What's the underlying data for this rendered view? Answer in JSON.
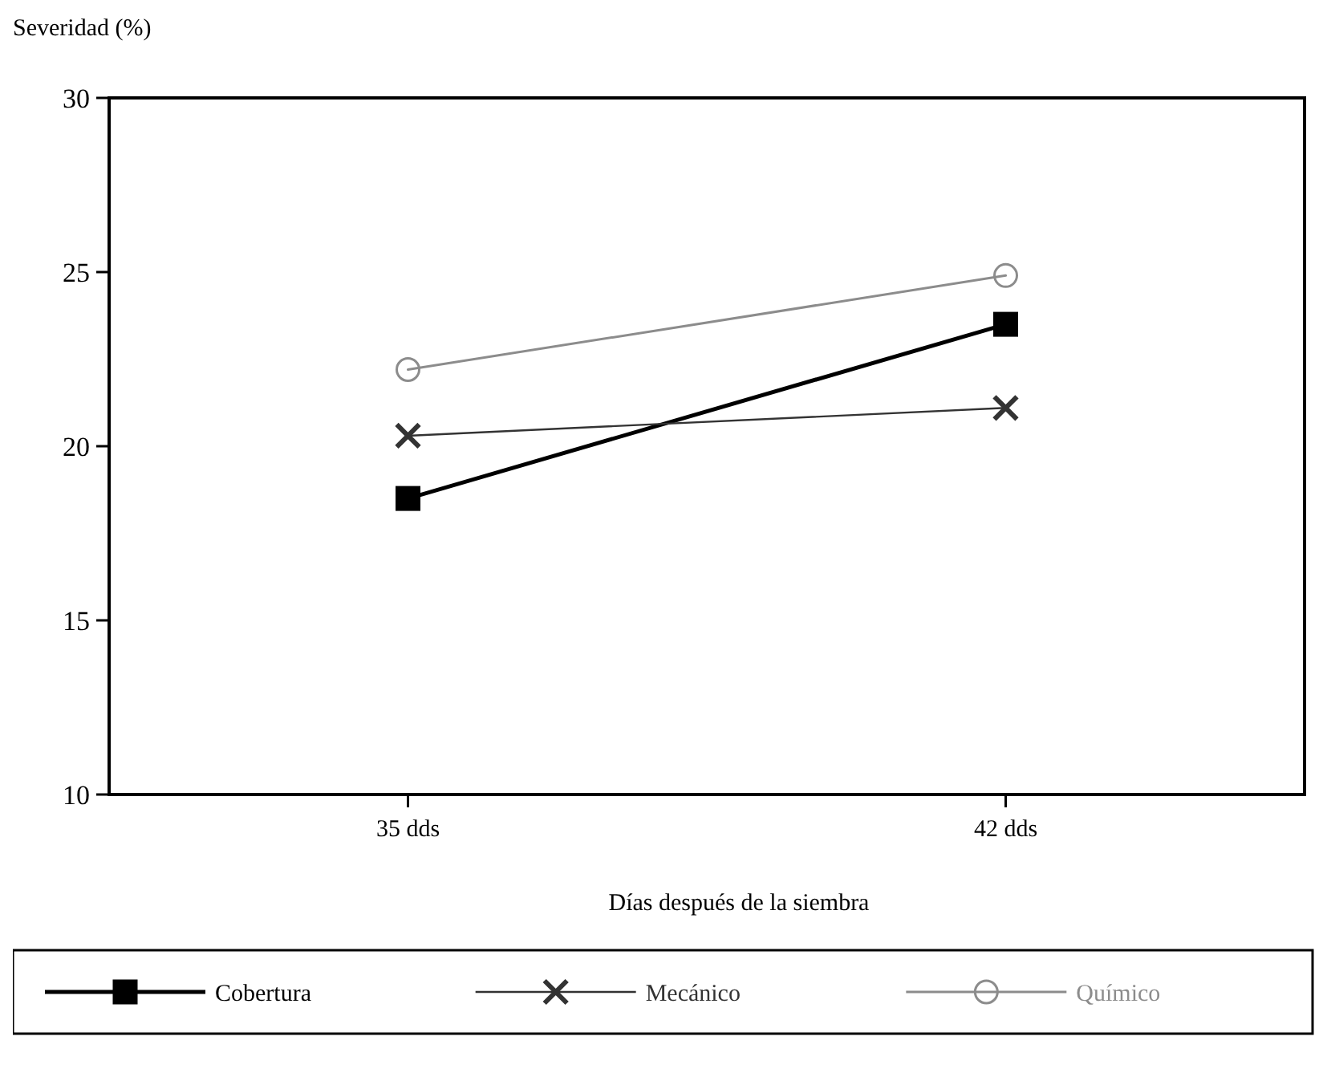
{
  "chart_data": {
    "type": "line",
    "ylabel": "Severidad (%)",
    "xlabel": "Días después de la siembra",
    "categories": [
      "35 dds",
      "42 dds"
    ],
    "series": [
      {
        "name": "Cobertura",
        "color": "#000000",
        "values": [
          18.5,
          23.5
        ],
        "marker": "square"
      },
      {
        "name": "Mecánico",
        "color": "#333333",
        "values": [
          20.3,
          21.1
        ],
        "marker": "cross"
      },
      {
        "name": "Químico",
        "color": "#8c8c8c",
        "values": [
          22.2,
          24.9
        ],
        "marker": "circle"
      }
    ],
    "ylim": [
      10,
      30
    ],
    "yticks": [
      10,
      15,
      20,
      25,
      30
    ],
    "grid": false,
    "legend": "bottom"
  }
}
